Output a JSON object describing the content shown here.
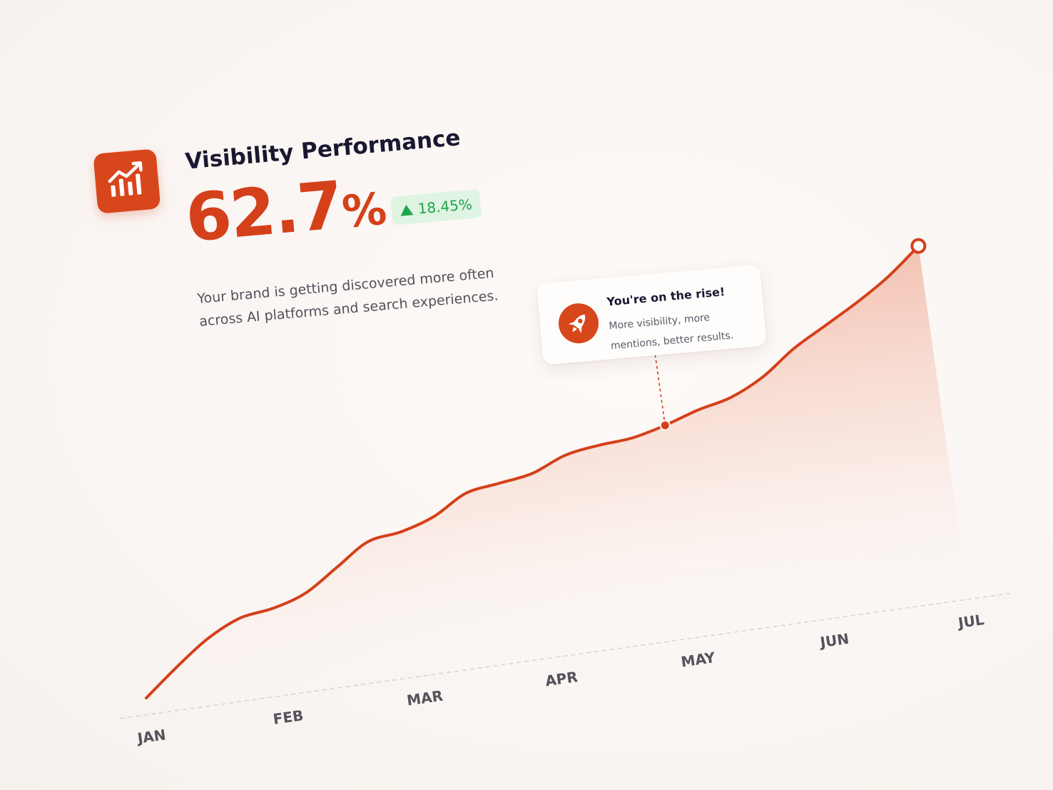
{
  "header": {
    "title": "Visibility Performance",
    "value": "62.7",
    "value_unit": "%",
    "change": "18.45%",
    "change_direction": "up",
    "description": "Your brand is getting discovered more often across AI platforms and search experiences."
  },
  "callout": {
    "title": "You're on the rise!",
    "body": "More visibility, more mentions, better results.",
    "anchor": "MAY"
  },
  "colors": {
    "accent": "#d8461c",
    "line": "#d4401a",
    "positive": "#1ea54a",
    "positive_bg": "#dff4e3"
  },
  "icons": {
    "logo": "trending-up-bar-chart-icon",
    "callout": "rocket-icon",
    "badge": "triangle-up-icon"
  },
  "chart_data": {
    "type": "area",
    "categories": [
      "JAN",
      "FEB",
      "MAR",
      "APR",
      "MAY",
      "JUN",
      "JUL"
    ],
    "x": [
      0,
      0.25,
      0.5,
      0.75,
      1,
      1.25,
      1.5,
      1.75,
      2,
      2.25,
      2.5,
      2.75,
      3,
      3.25,
      3.5,
      3.75,
      4,
      4.25,
      4.5,
      4.75,
      5,
      5.25,
      5.5,
      5.75,
      6
    ],
    "values": [
      2,
      12,
      21,
      27,
      29,
      33,
      41,
      49,
      51,
      55,
      62,
      64,
      66,
      71,
      73,
      74,
      77,
      81,
      84,
      90,
      99,
      106,
      113,
      121,
      131
    ],
    "title": "",
    "xlabel": "",
    "ylabel": "",
    "grid": false,
    "legend": "none"
  }
}
